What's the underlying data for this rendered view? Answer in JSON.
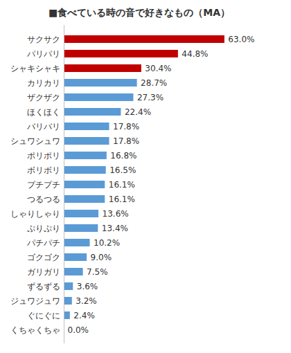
{
  "chart_data": {
    "type": "bar",
    "title": "■食べている時の音で好きなもの（MA）",
    "orientation": "horizontal",
    "categories": [
      "サクサク",
      "パリパリ",
      "シャキシャキ",
      "カリカリ",
      "ザクザク",
      "ほくほく",
      "バリバリ",
      "シュワシュワ",
      "ポリポリ",
      "ボリボリ",
      "プチプチ",
      "つるつる",
      "しゃりしゃり",
      "ぷりぷり",
      "パチパチ",
      "ゴクゴク",
      "ガリガリ",
      "ずるずる",
      "ジュワジュワ",
      "ぐにぐに",
      "くちゃくちゃ"
    ],
    "values": [
      63.0,
      44.8,
      30.4,
      28.7,
      27.3,
      22.4,
      17.8,
      17.8,
      16.8,
      16.5,
      16.1,
      16.1,
      13.6,
      13.4,
      10.2,
      9.0,
      7.5,
      3.6,
      3.2,
      2.4,
      0.0
    ],
    "value_labels": [
      "63.0%",
      "44.8%",
      "30.4%",
      "28.7%",
      "27.3%",
      "22.4%",
      "17.8%",
      "17.8%",
      "16.8%",
      "16.5%",
      "16.1%",
      "16.1%",
      "13.6%",
      "13.4%",
      "10.2%",
      "9.0%",
      "7.5%",
      "3.6%",
      "3.2%",
      "2.4%",
      "0.0%"
    ],
    "colors": [
      "#c00000",
      "#c00000",
      "#c00000",
      "#5b9bd5",
      "#5b9bd5",
      "#5b9bd5",
      "#5b9bd5",
      "#5b9bd5",
      "#5b9bd5",
      "#5b9bd5",
      "#5b9bd5",
      "#5b9bd5",
      "#5b9bd5",
      "#5b9bd5",
      "#5b9bd5",
      "#5b9bd5",
      "#5b9bd5",
      "#5b9bd5",
      "#5b9bd5",
      "#5b9bd5",
      "#5b9bd5"
    ],
    "xlim": [
      0,
      75
    ],
    "data_labels": true,
    "tick_labels": "y",
    "grid": false
  }
}
